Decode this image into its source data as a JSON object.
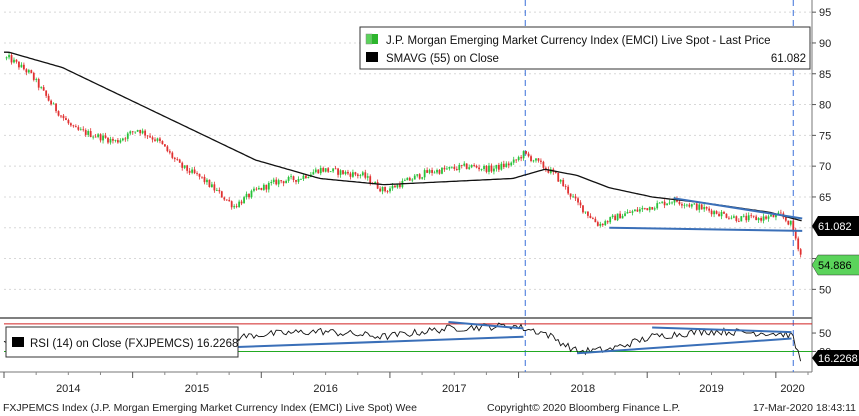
{
  "chart_data": [
    {
      "type": "candlestick",
      "panel": "price",
      "ylim": [
        46,
        96
      ],
      "yticks": [
        50,
        55,
        60,
        65,
        70,
        75,
        80,
        85,
        90,
        95
      ],
      "x_year_labels": [
        "2014",
        "2015",
        "2016",
        "2017",
        "2018",
        "2019",
        "2020"
      ],
      "legend": {
        "series1": "J.P. Morgan Emerging Market Currency Index (EMCI) Live Spot - Last Price",
        "series2": "SMAVG (55)  on Close",
        "series2_value": "61.082"
      },
      "callouts": {
        "sma_value": "61.082",
        "last_price": "54.886"
      },
      "price_path": [
        [
          "2014-01",
          87.5
        ],
        [
          "2014-03",
          85.0
        ],
        [
          "2014-05",
          80.0
        ],
        [
          "2014-07",
          76.0
        ],
        [
          "2014-09",
          75.0
        ],
        [
          "2014-11",
          74.0
        ],
        [
          "2015-01",
          76.0
        ],
        [
          "2015-03",
          74.0
        ],
        [
          "2015-05",
          70.0
        ],
        [
          "2015-07",
          68.0
        ],
        [
          "2015-09",
          65.0
        ],
        [
          "2015-10",
          63.5
        ],
        [
          "2015-12",
          66.0
        ],
        [
          "2016-02",
          67.5
        ],
        [
          "2016-04",
          68.0
        ],
        [
          "2016-06",
          69.5
        ],
        [
          "2016-08",
          69.0
        ],
        [
          "2016-10",
          68.5
        ],
        [
          "2016-12",
          66.0
        ],
        [
          "2017-02",
          67.5
        ],
        [
          "2017-04",
          69.0
        ],
        [
          "2017-06",
          69.5
        ],
        [
          "2017-08",
          70.0
        ],
        [
          "2017-10",
          69.5
        ],
        [
          "2017-12",
          70.5
        ],
        [
          "2018-01",
          72.0
        ],
        [
          "2018-02",
          71.0
        ],
        [
          "2018-04",
          68.5
        ],
        [
          "2018-06",
          64.0
        ],
        [
          "2018-08",
          60.5
        ],
        [
          "2018-10",
          62.0
        ],
        [
          "2019-01",
          63.5
        ],
        [
          "2019-03",
          64.5
        ],
        [
          "2019-05",
          63.5
        ],
        [
          "2019-07",
          62.5
        ],
        [
          "2019-09",
          61.5
        ],
        [
          "2019-11",
          61.5
        ],
        [
          "2020-01",
          62.0
        ],
        [
          "2020-02",
          60.5
        ],
        [
          "2020-03",
          54.9
        ]
      ],
      "sma_path": [
        [
          "2014-01",
          88.5
        ],
        [
          "2014-06",
          86.0
        ],
        [
          "2014-12",
          81.0
        ],
        [
          "2015-06",
          76.0
        ],
        [
          "2015-12",
          71.0
        ],
        [
          "2016-06",
          68.0
        ],
        [
          "2016-12",
          67.0
        ],
        [
          "2017-06",
          67.5
        ],
        [
          "2017-12",
          68.0
        ],
        [
          "2018-03",
          69.5
        ],
        [
          "2018-06",
          68.5
        ],
        [
          "2018-09",
          66.5
        ],
        [
          "2019-01",
          65.0
        ],
        [
          "2019-06",
          64.0
        ],
        [
          "2019-12",
          62.5
        ],
        [
          "2020-03",
          61.1
        ]
      ],
      "trendlines": [
        {
          "from": [
            "2019-03",
            64.8
          ],
          "to": [
            "2020-03",
            61.5
          ]
        },
        {
          "from": [
            "2018-09",
            60.0
          ],
          "to": [
            "2020-03",
            59.5
          ]
        }
      ],
      "event_lines": [
        "2018-01-20",
        "2020-02-20"
      ]
    },
    {
      "type": "line",
      "panel": "rsi",
      "legend": "RSI (14)  on Close (FXJPEMCS) 16.2268",
      "ylim": [
        12,
        62
      ],
      "yticks": [
        50,
        30
      ],
      "callout": "16.2268",
      "overbought": 70,
      "oversold": 30,
      "rsi_path": [
        [
          "2014-01",
          40
        ],
        [
          "2014-06",
          36
        ],
        [
          "2014-12",
          42
        ],
        [
          "2015-06",
          38
        ],
        [
          "2015-12",
          48
        ],
        [
          "2016-06",
          52
        ],
        [
          "2016-12",
          46
        ],
        [
          "2017-06",
          55
        ],
        [
          "2017-12",
          58
        ],
        [
          "2018-03",
          50
        ],
        [
          "2018-06",
          30
        ],
        [
          "2018-09",
          32
        ],
        [
          "2019-01",
          46
        ],
        [
          "2019-06",
          52
        ],
        [
          "2019-12",
          50
        ],
        [
          "2020-02",
          48
        ],
        [
          "2020-03",
          16.2
        ]
      ],
      "trendlines": [
        {
          "from": [
            "2015-06",
            33
          ],
          "to": [
            "2018-01",
            46
          ]
        },
        {
          "from": [
            "2017-06",
            62
          ],
          "to": [
            "2018-01",
            55
          ]
        },
        {
          "from": [
            "2018-06",
            28
          ],
          "to": [
            "2020-02",
            44
          ]
        },
        {
          "from": [
            "2019-01",
            56
          ],
          "to": [
            "2020-02",
            51
          ]
        }
      ]
    }
  ],
  "footer": {
    "left": "FXJPEMCS Index (J.P. Morgan Emerging Market Currency Index (EMCI) Live Spot) Wee",
    "center": "Copyright© 2020 Bloomberg Finance L.P.",
    "right": "17-Mar-2020 18:43:11"
  }
}
